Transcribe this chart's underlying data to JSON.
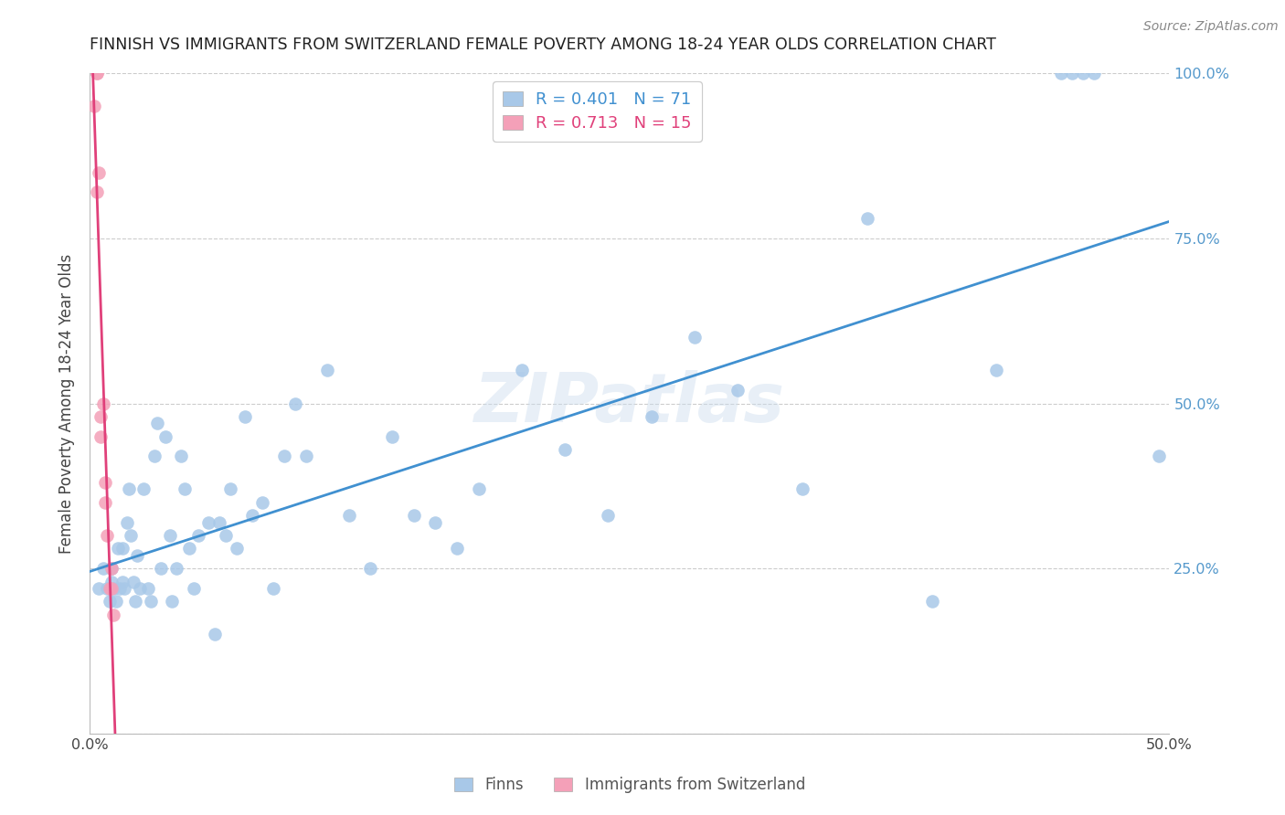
{
  "title": "FINNISH VS IMMIGRANTS FROM SWITZERLAND FEMALE POVERTY AMONG 18-24 YEAR OLDS CORRELATION CHART",
  "source": "Source: ZipAtlas.com",
  "ylabel": "Female Poverty Among 18-24 Year Olds",
  "xlim": [
    0.0,
    0.5
  ],
  "ylim": [
    0.0,
    1.0
  ],
  "legend_r1": "R = 0.401",
  "legend_n1": "N = 71",
  "legend_r2": "R = 0.713",
  "legend_n2": "N = 15",
  "blue_color": "#a8c8e8",
  "pink_color": "#f4a0b8",
  "blue_line_color": "#4090d0",
  "pink_line_color": "#e0407a",
  "right_axis_color": "#5599cc",
  "watermark": "ZIPatlas",
  "finns_x": [
    0.004,
    0.006,
    0.008,
    0.009,
    0.01,
    0.01,
    0.011,
    0.012,
    0.013,
    0.014,
    0.015,
    0.015,
    0.016,
    0.017,
    0.018,
    0.019,
    0.02,
    0.021,
    0.022,
    0.023,
    0.025,
    0.027,
    0.028,
    0.03,
    0.031,
    0.033,
    0.035,
    0.037,
    0.038,
    0.04,
    0.042,
    0.044,
    0.046,
    0.048,
    0.05,
    0.055,
    0.058,
    0.06,
    0.063,
    0.065,
    0.068,
    0.072,
    0.075,
    0.08,
    0.085,
    0.09,
    0.095,
    0.1,
    0.11,
    0.12,
    0.13,
    0.14,
    0.15,
    0.16,
    0.17,
    0.18,
    0.2,
    0.22,
    0.24,
    0.26,
    0.28,
    0.3,
    0.33,
    0.36,
    0.39,
    0.42,
    0.45,
    0.455,
    0.46,
    0.465,
    0.495
  ],
  "finns_y": [
    0.22,
    0.25,
    0.22,
    0.2,
    0.25,
    0.23,
    0.22,
    0.2,
    0.28,
    0.22,
    0.23,
    0.28,
    0.22,
    0.32,
    0.37,
    0.3,
    0.23,
    0.2,
    0.27,
    0.22,
    0.37,
    0.22,
    0.2,
    0.42,
    0.47,
    0.25,
    0.45,
    0.3,
    0.2,
    0.25,
    0.42,
    0.37,
    0.28,
    0.22,
    0.3,
    0.32,
    0.15,
    0.32,
    0.3,
    0.37,
    0.28,
    0.48,
    0.33,
    0.35,
    0.22,
    0.42,
    0.5,
    0.42,
    0.55,
    0.33,
    0.25,
    0.45,
    0.33,
    0.32,
    0.28,
    0.37,
    0.55,
    0.43,
    0.33,
    0.48,
    0.6,
    0.52,
    0.37,
    0.78,
    0.2,
    0.55,
    1.0,
    1.0,
    1.0,
    1.0,
    0.42
  ],
  "swiss_x": [
    0.002,
    0.003,
    0.003,
    0.003,
    0.004,
    0.005,
    0.005,
    0.006,
    0.007,
    0.007,
    0.008,
    0.009,
    0.01,
    0.01,
    0.011
  ],
  "swiss_y": [
    0.95,
    1.0,
    1.0,
    0.82,
    0.85,
    0.48,
    0.45,
    0.5,
    0.38,
    0.35,
    0.3,
    0.22,
    0.25,
    0.22,
    0.18
  ]
}
